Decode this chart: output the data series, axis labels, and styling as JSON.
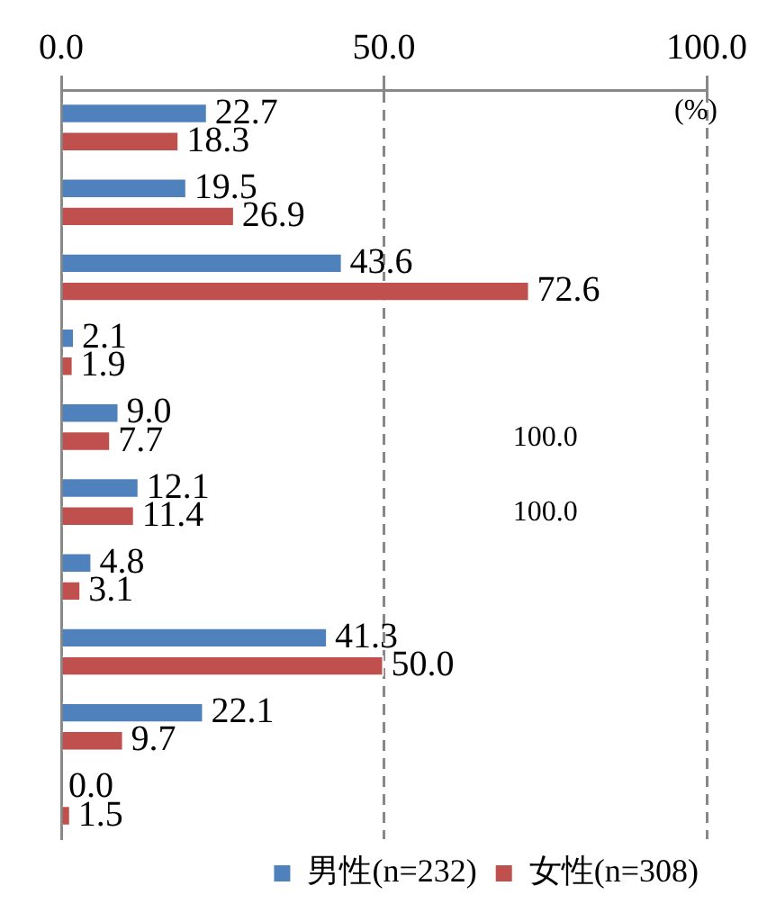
{
  "chart_data": {
    "type": "bar",
    "orientation": "horizontal",
    "xlabel": "(%)",
    "categories": [
      null,
      null,
      null,
      null,
      null,
      null,
      null,
      null,
      null,
      null
    ],
    "series": [
      {
        "name": "男性(n=232)",
        "color": "#4f81bd",
        "values": [
          22.7,
          19.5,
          43.6,
          2.1,
          9.0,
          12.1,
          4.8,
          41.3,
          22.1,
          0.0
        ],
        "value_labels": [
          "22.7",
          "19.5",
          "43.6",
          "2.1",
          "9.0",
          "12.1",
          "4.8",
          "41.3",
          "22.1",
          "0.0"
        ]
      },
      {
        "name": "女性(n=308)",
        "color": "#c0504d",
        "values": [
          18.3,
          26.9,
          72.6,
          1.9,
          7.7,
          11.4,
          3.1,
          50.0,
          9.7,
          1.5
        ],
        "value_labels": [
          "18.3",
          "26.9",
          "72.6",
          "1.9",
          "7.7",
          "11.4",
          "3.1",
          "50.0",
          "9.7",
          "1.5"
        ]
      }
    ],
    "xlim": [
      0,
      100
    ],
    "xticks": [
      {
        "value": 0,
        "label": "0.0"
      },
      {
        "value": 50,
        "label": "50.0"
      },
      {
        "value": 100,
        "label": "100.0"
      }
    ],
    "grid": "x",
    "legend": "bottom right",
    "annotations": [
      "100.0",
      "100.0"
    ]
  }
}
